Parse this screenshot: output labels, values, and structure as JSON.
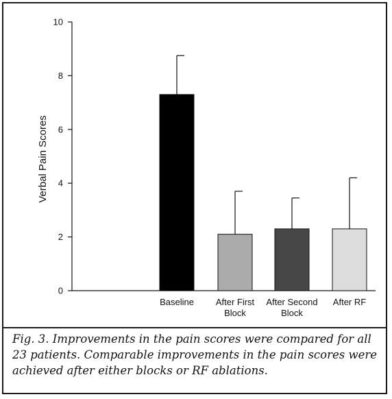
{
  "chart_data": {
    "type": "bar",
    "categories": [
      [
        "Baseline"
      ],
      [
        "After First",
        "Block"
      ],
      [
        "After Second",
        "Block"
      ],
      [
        "After RF"
      ]
    ],
    "values": [
      7.3,
      2.1,
      2.3,
      2.3
    ],
    "errors": [
      1.45,
      1.6,
      1.15,
      1.9
    ],
    "bar_colors": [
      "#000000",
      "#ababab",
      "#474747",
      "#dcdcdc"
    ],
    "ylabel": "Verbal Pain Scores",
    "ylim": [
      0,
      10
    ],
    "yticks": [
      0,
      2,
      4,
      6,
      8,
      10
    ]
  },
  "caption": "Fig. 3. Improvements in the pain scores were compared for all 23 patients. Comparable improvements in the pain scores were achieved after either blocks or RF ablations."
}
